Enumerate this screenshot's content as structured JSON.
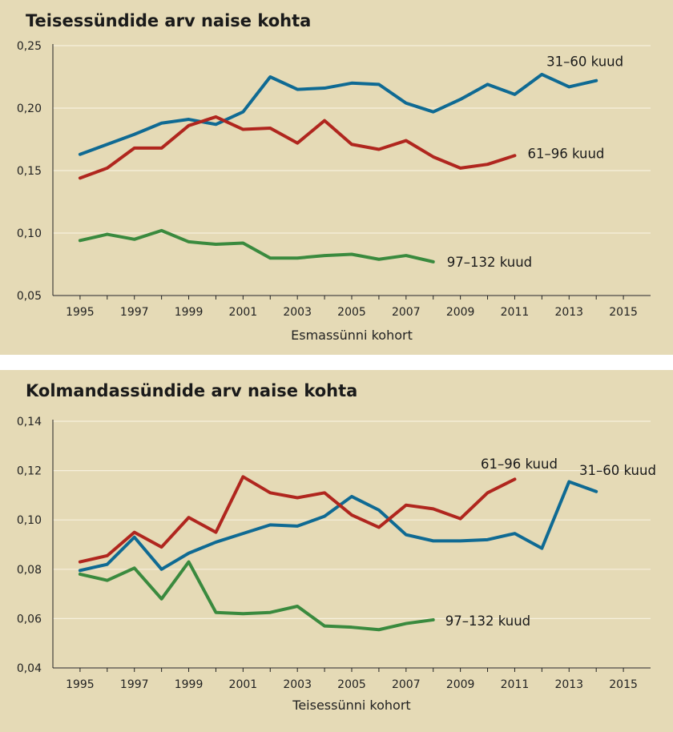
{
  "colors": {
    "background": "#e5dab6",
    "grid": "#f6f0dd",
    "series_31_60": "#0f6a93",
    "series_61_96": "#b0261e",
    "series_97_132": "#3a8a3e"
  },
  "chart_data": [
    {
      "type": "line",
      "title": "Teisessündide arv naise kohta",
      "xlabel": "Esmassünni kohort",
      "ylabel": "",
      "ylim": [
        0.05,
        0.25
      ],
      "xlim": [
        1995,
        2015
      ],
      "yticks": [
        "0,05",
        "0,10",
        "0,15",
        "0,20",
        "0,25"
      ],
      "xticks": [
        "1995",
        "1997",
        "1999",
        "2001",
        "2003",
        "2005",
        "2007",
        "2009",
        "2011",
        "2013",
        "2015"
      ],
      "grid": true,
      "series": [
        {
          "name": "31–60 kuud",
          "color": "#0f6a93",
          "x": [
            1995,
            1996,
            1997,
            1998,
            1999,
            2000,
            2001,
            2002,
            2003,
            2004,
            2005,
            2006,
            2007,
            2008,
            2009,
            2010,
            2011,
            2012,
            2013,
            2014
          ],
          "values": [
            0.163,
            0.171,
            0.179,
            0.188,
            0.191,
            0.187,
            0.197,
            0.225,
            0.215,
            0.216,
            0.22,
            0.219,
            0.204,
            0.197,
            0.207,
            0.219,
            0.211,
            0.227,
            0.217,
            0.222
          ]
        },
        {
          "name": "61–96 kuud",
          "color": "#b0261e",
          "x": [
            1995,
            1996,
            1997,
            1998,
            1999,
            2000,
            2001,
            2002,
            2003,
            2004,
            2005,
            2006,
            2007,
            2008,
            2009,
            2010,
            2011
          ],
          "values": [
            0.144,
            0.152,
            0.168,
            0.168,
            0.186,
            0.193,
            0.183,
            0.184,
            0.172,
            0.19,
            0.171,
            0.167,
            0.174,
            0.161,
            0.152,
            0.155,
            0.162
          ]
        },
        {
          "name": "97–132 kuud",
          "color": "#3a8a3e",
          "x": [
            1995,
            1996,
            1997,
            1998,
            1999,
            2000,
            2001,
            2002,
            2003,
            2004,
            2005,
            2006,
            2007,
            2008
          ],
          "values": [
            0.094,
            0.099,
            0.095,
            0.102,
            0.093,
            0.091,
            0.092,
            0.08,
            0.08,
            0.082,
            0.083,
            0.079,
            0.082,
            0.077
          ]
        }
      ]
    },
    {
      "type": "line",
      "title": "Kolmandassündide arv naise kohta",
      "xlabel": "Teisessünni kohort",
      "ylabel": "",
      "ylim": [
        0.04,
        0.14
      ],
      "xlim": [
        1995,
        2015
      ],
      "yticks": [
        "0,04",
        "0,06",
        "0,08",
        "0,10",
        "0,12",
        "0,14"
      ],
      "xticks": [
        "1995",
        "1997",
        "1999",
        "2001",
        "2003",
        "2005",
        "2007",
        "2009",
        "2011",
        "2013",
        "2015"
      ],
      "grid": true,
      "series": [
        {
          "name": "31–60 kuud",
          "color": "#0f6a93",
          "x": [
            1995,
            1996,
            1997,
            1998,
            1999,
            2000,
            2001,
            2002,
            2003,
            2004,
            2005,
            2006,
            2007,
            2008,
            2009,
            2010,
            2011,
            2012,
            2013,
            2014,
            2015
          ],
          "values": [
            0.0795,
            0.082,
            0.093,
            0.08,
            0.0865,
            0.091,
            0.0945,
            0.098,
            0.0975,
            0.1015,
            0.1095,
            0.104,
            0.094,
            0.0915,
            0.0915,
            0.092,
            0.0945,
            0.0885,
            0.1155,
            0.1115,
            null
          ]
        },
        {
          "name": "61–96 kuud",
          "color": "#b0261e",
          "x": [
            1995,
            1996,
            1997,
            1998,
            1999,
            2000,
            2001,
            2002,
            2003,
            2004,
            2005,
            2006,
            2007,
            2008,
            2009,
            2010,
            2011
          ],
          "values": [
            0.083,
            0.0855,
            0.095,
            0.089,
            0.101,
            0.095,
            0.1175,
            0.111,
            0.109,
            0.111,
            0.102,
            0.097,
            0.106,
            0.1045,
            0.1005,
            0.111,
            0.1165
          ]
        },
        {
          "name": "97–132 kuud",
          "color": "#3a8a3e",
          "x": [
            1995,
            1996,
            1997,
            1998,
            1999,
            2000,
            2001,
            2002,
            2003,
            2004,
            2005,
            2006,
            2007,
            2008
          ],
          "values": [
            0.078,
            0.0755,
            0.0805,
            0.068,
            0.083,
            0.0625,
            0.062,
            0.0625,
            0.065,
            0.057,
            0.0565,
            0.0555,
            0.058,
            0.0595
          ]
        }
      ]
    }
  ]
}
